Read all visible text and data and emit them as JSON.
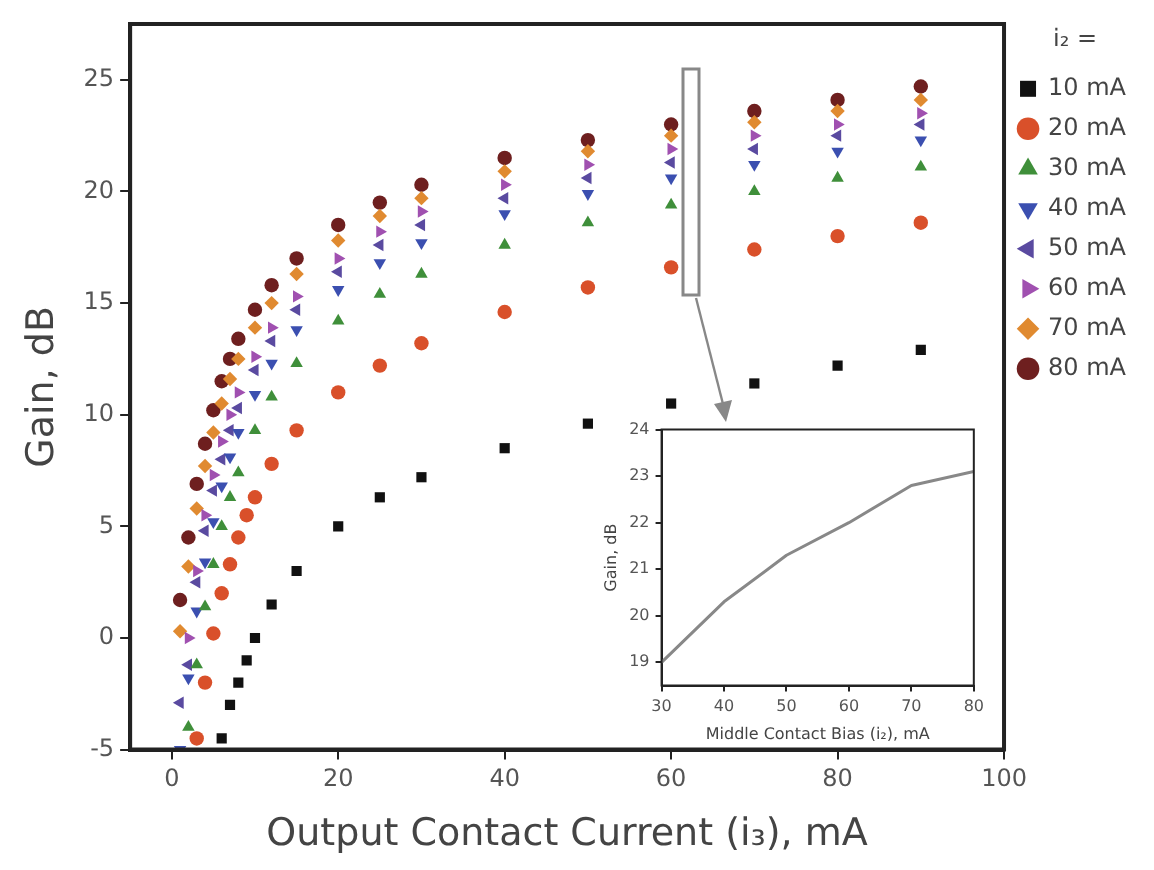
{
  "chart_data": [
    {
      "type": "scatter",
      "xlabel": "Output Contact Current (i₃), mA",
      "ylabel": "Gain, dB",
      "legend_title": "i₂ =",
      "legend": "right",
      "grid": false,
      "xlim": [
        -5,
        100
      ],
      "ylim": [
        -5,
        27.5
      ],
      "xticks": [
        0,
        20,
        40,
        60,
        80,
        100
      ],
      "yticks": [
        -5,
        0,
        5,
        10,
        15,
        20,
        25
      ],
      "series": [
        {
          "name": "10 mA",
          "color": "#111111",
          "marker": "square",
          "x": [
            6,
            7,
            8,
            9,
            10,
            12,
            15,
            20,
            25,
            30,
            40,
            50,
            60,
            70,
            80,
            90
          ],
          "values": [
            -4.5,
            -3,
            -2,
            -1,
            0,
            1.5,
            3,
            5,
            6.3,
            7.2,
            8.5,
            9.6,
            10.5,
            11.4,
            12.2,
            12.9
          ]
        },
        {
          "name": "20 mA",
          "color": "#d9502a",
          "marker": "circle",
          "x": [
            3,
            4,
            5,
            6,
            7,
            8,
            9,
            10,
            12,
            15,
            20,
            25,
            30,
            40,
            50,
            60,
            70,
            80,
            90
          ],
          "values": [
            -4.5,
            -2,
            0.2,
            2,
            3.3,
            4.5,
            5.5,
            6.3,
            7.8,
            9.3,
            11,
            12.2,
            13.2,
            14.6,
            15.7,
            16.6,
            17.4,
            18,
            18.6
          ]
        },
        {
          "name": "30 mA",
          "color": "#3f8f3a",
          "marker": "triangle",
          "x": [
            2,
            3,
            4,
            5,
            6,
            7,
            8,
            10,
            12,
            15,
            20,
            25,
            30,
            40,
            50,
            60,
            70,
            80,
            90
          ],
          "values": [
            -4,
            -1.2,
            1.4,
            3.3,
            5,
            6.3,
            7.4,
            9.3,
            10.8,
            12.3,
            14.2,
            15.4,
            16.3,
            17.6,
            18.6,
            19.4,
            20,
            20.6,
            21.1
          ]
        },
        {
          "name": "40 mA",
          "color": "#3b4fb0",
          "marker": "triangle-down",
          "x": [
            1,
            2,
            3,
            4,
            5,
            6,
            7,
            8,
            10,
            12,
            15,
            20,
            25,
            30,
            40,
            50,
            60,
            70,
            80,
            90
          ],
          "values": [
            -5,
            -1.8,
            1.2,
            3.4,
            5.2,
            6.8,
            8.1,
            9.2,
            10.9,
            12.3,
            13.8,
            15.6,
            16.8,
            17.7,
            19,
            19.9,
            20.6,
            21.2,
            21.8,
            22.3
          ]
        },
        {
          "name": "50 mA",
          "color": "#5a4aa0",
          "marker": "triangle-left",
          "x": [
            1,
            2,
            3,
            4,
            5,
            6,
            7,
            8,
            10,
            12,
            15,
            20,
            25,
            30,
            40,
            50,
            60,
            70,
            80,
            90
          ],
          "values": [
            -2.9,
            -1.2,
            2.5,
            4.8,
            6.6,
            8,
            9.3,
            10.3,
            12,
            13.3,
            14.7,
            16.4,
            17.6,
            18.5,
            19.7,
            20.6,
            21.3,
            21.9,
            22.5,
            23
          ]
        },
        {
          "name": "60 mA",
          "color": "#a050b0",
          "marker": "triangle-right",
          "x": [
            2,
            3,
            4,
            5,
            6,
            7,
            8,
            10,
            12,
            15,
            20,
            25,
            30,
            40,
            50,
            60,
            70,
            80,
            90
          ],
          "values": [
            0,
            3,
            5.5,
            7.3,
            8.8,
            10,
            11,
            12.6,
            13.9,
            15.3,
            17,
            18.2,
            19.1,
            20.3,
            21.2,
            21.9,
            22.5,
            23,
            23.5
          ]
        },
        {
          "name": "70 mA",
          "color": "#e08a30",
          "marker": "diamond",
          "x": [
            1,
            2,
            3,
            4,
            5,
            6,
            7,
            8,
            10,
            12,
            15,
            20,
            25,
            30,
            40,
            50,
            60,
            70,
            80,
            90
          ],
          "values": [
            0.3,
            3.2,
            5.8,
            7.7,
            9.2,
            10.5,
            11.6,
            12.5,
            13.9,
            15,
            16.3,
            17.8,
            18.9,
            19.7,
            20.9,
            21.8,
            22.5,
            23.1,
            23.6,
            24.1
          ]
        },
        {
          "name": "80 mA",
          "color": "#6e1f1f",
          "marker": "circle",
          "x": [
            1,
            2,
            3,
            4,
            5,
            6,
            7,
            8,
            10,
            12,
            15,
            20,
            25,
            30,
            40,
            50,
            60,
            70,
            80,
            90
          ],
          "values": [
            1.7,
            4.5,
            6.9,
            8.7,
            10.2,
            11.5,
            12.5,
            13.4,
            14.7,
            15.8,
            17,
            18.5,
            19.5,
            20.3,
            21.5,
            22.3,
            23,
            23.6,
            24.1,
            24.7
          ]
        }
      ]
    },
    {
      "type": "line",
      "xlabel": "Middle Contact Bias (i₂), mA",
      "ylabel": "Gain, dB",
      "grid": false,
      "legend": false,
      "marker": "none",
      "xlim": [
        30,
        80
      ],
      "ylim": [
        18.5,
        24
      ],
      "xticks": [
        30,
        40,
        50,
        60,
        70,
        80
      ],
      "yticks": [
        19,
        20,
        21,
        22,
        23,
        24
      ],
      "series": [
        {
          "color": "#888888",
          "x": [
            30,
            40,
            50,
            60,
            70,
            80
          ],
          "values": [
            19,
            20.3,
            21.3,
            22,
            22.8,
            23.1
          ]
        }
      ]
    }
  ]
}
